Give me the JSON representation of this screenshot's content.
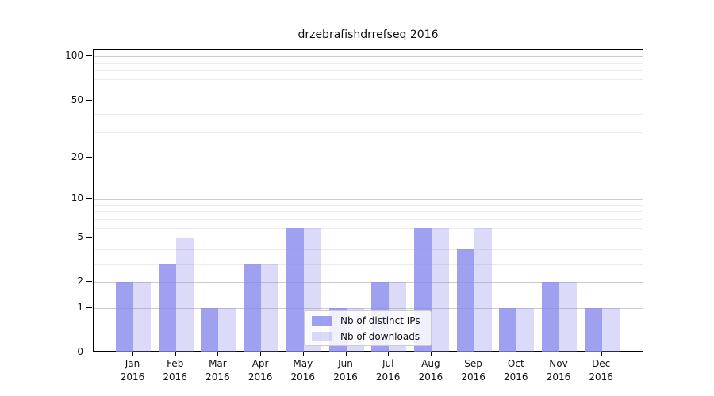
{
  "title": "drzebrafishdrrefseq 2016",
  "chart_data": {
    "type": "bar",
    "title": "drzebrafishdrrefseq 2016",
    "categories": [
      "Jan",
      "Feb",
      "Mar",
      "Apr",
      "May",
      "Jun",
      "Jul",
      "Aug",
      "Sep",
      "Oct",
      "Nov",
      "Dec"
    ],
    "year_label": "2016",
    "series": [
      {
        "name": "Nb of distinct IPs",
        "values": [
          2,
          3,
          1,
          3,
          6,
          1,
          2,
          6,
          4,
          1,
          2,
          1
        ],
        "color": "#8888ec",
        "opacity": 0.8
      },
      {
        "name": "Nb of downloads",
        "values": [
          2,
          5,
          1,
          3,
          6,
          1,
          2,
          6,
          6,
          1,
          2,
          1
        ],
        "color": "#8888ec",
        "opacity": 0.3
      }
    ],
    "y_axis": {
      "scale": "log1p",
      "tick_labels": [
        "100",
        "50",
        "20",
        "10",
        "5",
        "2",
        "1",
        "0"
      ],
      "ticks": [
        100,
        50,
        20,
        10,
        5,
        2,
        1,
        0
      ],
      "minor_ticks": [
        3,
        4,
        6,
        7,
        8,
        9,
        30,
        40,
        60,
        70,
        80,
        90
      ],
      "max": 111
    },
    "x_axis": {
      "tick_labels_line2": "2016"
    },
    "grid": {
      "major_color": "#cccccc",
      "minor_color": "#ebebeb"
    },
    "legend": {
      "position": "bottom-center"
    },
    "colors": {
      "bar_base": "#8888ec",
      "dark_rendered": "#a0a0ee",
      "light_rendered": "#dbdbf7"
    }
  }
}
